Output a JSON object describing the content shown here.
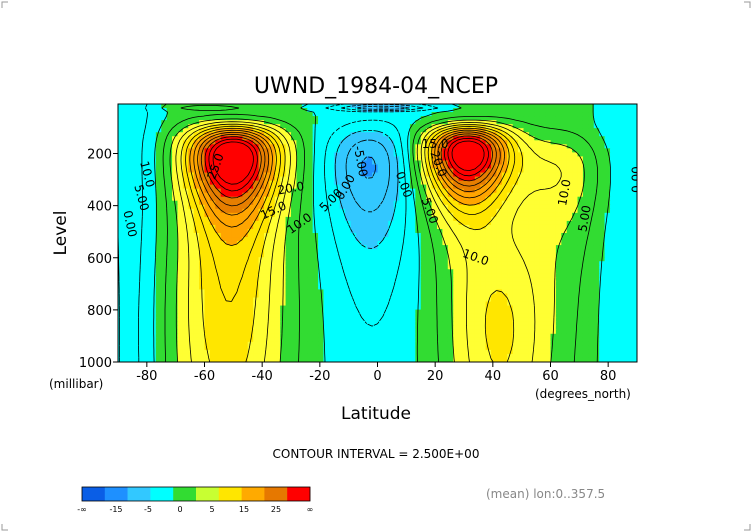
{
  "chart_data": {
    "type": "contour",
    "title": "UWND_1984-04_NCEP",
    "xlabel": "Latitude",
    "x_units": "(degrees_north)",
    "ylabel": "Level",
    "y_units": "(millibar)",
    "x_ticks": [
      "-80",
      "-60",
      "-40",
      "-20",
      "0",
      "20",
      "40",
      "60",
      "80"
    ],
    "y_ticks": [
      "200",
      "400",
      "600",
      "800",
      "1000"
    ],
    "xlim": [
      -90,
      90
    ],
    "ylim": [
      1000,
      10
    ],
    "y_reversed": true,
    "contour_interval_text": "CONTOUR INTERVAL = 2.500E+00",
    "footnote": "(mean) lon:0..357.5",
    "contour_labels": [
      {
        "text": "10.0",
        "lat": -80,
        "p": 280,
        "rot": 75
      },
      {
        "text": "5.00",
        "lat": -82,
        "p": 370,
        "rot": 75
      },
      {
        "text": "0.00",
        "lat": -86,
        "p": 470,
        "rot": 78
      },
      {
        "text": "25.0",
        "lat": -56,
        "p": 250,
        "rot": -70
      },
      {
        "text": "20.0",
        "lat": -30,
        "p": 335,
        "rot": -10
      },
      {
        "text": "15.0",
        "lat": -36,
        "p": 420,
        "rot": -25
      },
      {
        "text": "10.0",
        "lat": -27,
        "p": 470,
        "rot": -35
      },
      {
        "text": "5.00",
        "lat": -16,
        "p": 380,
        "rot": -45
      },
      {
        "text": "0.00",
        "lat": -11,
        "p": 330,
        "rot": -60
      },
      {
        "text": "-5.00",
        "lat": -6,
        "p": 230,
        "rot": 80
      },
      {
        "text": "15.0",
        "lat": 20,
        "p": 165,
        "rot": 0
      },
      {
        "text": "20.0",
        "lat": 21,
        "p": 240,
        "rot": 70
      },
      {
        "text": "0.00",
        "lat": 9,
        "p": 320,
        "rot": 70
      },
      {
        "text": "5.00",
        "lat": 18,
        "p": 420,
        "rot": 70
      },
      {
        "text": "10.0",
        "lat": 34,
        "p": 600,
        "rot": 20
      },
      {
        "text": "10.0",
        "lat": 65,
        "p": 350,
        "rot": -80
      },
      {
        "text": "5.00",
        "lat": 72,
        "p": 450,
        "rot": -80
      },
      {
        "text": "0.00",
        "lat": 90,
        "p": 300,
        "rot": -90
      }
    ],
    "colorbar": {
      "colors": [
        "#0a5ee6",
        "#1e90ff",
        "#32c8ff",
        "#00ffff",
        "#32dc32",
        "#c8ff32",
        "#ffe600",
        "#ffaa00",
        "#e67800",
        "#ff0000"
      ],
      "labels": [
        "-∞",
        "-15",
        "-5",
        "0",
        "5",
        "15",
        "25",
        "∞"
      ]
    },
    "fill_colors": {
      "neg15": "#0a5ee6",
      "neg10": "#1e90ff",
      "neg5": "#32c8ff",
      "zero": "#00ffff",
      "pos0": "#32dc32",
      "pos5": "#ffff33",
      "pos10": "#ffe600",
      "pos15": "#ffa500",
      "pos20": "#e67e00",
      "pos25": "#ff0000"
    }
  }
}
